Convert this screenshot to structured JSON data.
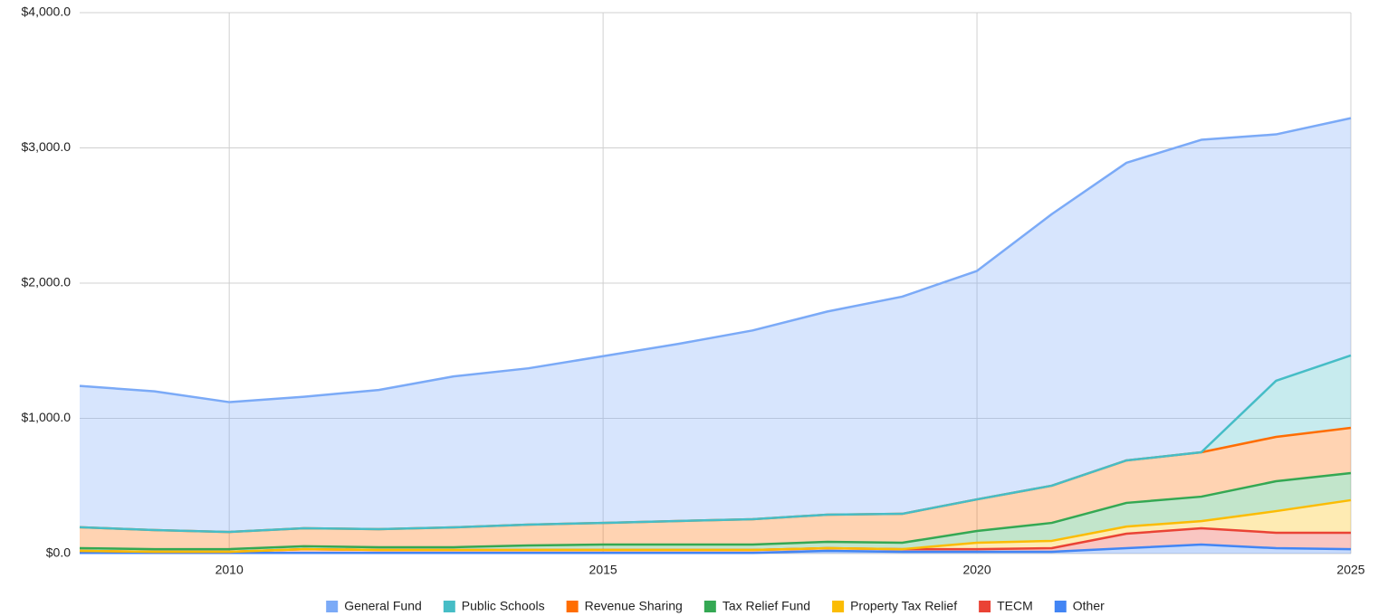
{
  "chart_data": {
    "type": "stacked_area",
    "x": [
      2008,
      2009,
      2010,
      2011,
      2012,
      2013,
      2014,
      2015,
      2016,
      2017,
      2018,
      2019,
      2020,
      2021,
      2022,
      2023,
      2024,
      2025
    ],
    "xlim": [
      2008,
      2025
    ],
    "xticks": [
      2010,
      2015,
      2020,
      2025
    ],
    "ylim": [
      0,
      4000
    ],
    "yticks": [
      {
        "value": 0,
        "label": "$0.0"
      },
      {
        "value": 1000,
        "label": "$1,000.0"
      },
      {
        "value": 2000,
        "label": "$2,000.0"
      },
      {
        "value": 3000,
        "label": "$3,000.0"
      },
      {
        "value": 4000,
        "label": "$4,000.0"
      }
    ],
    "grid": true,
    "legend": "bottom",
    "series": [
      {
        "name": "Other",
        "color": "#4285f4",
        "values": [
          5,
          5,
          5,
          5,
          5,
          5,
          5,
          5,
          5,
          5,
          20,
          13,
          13,
          13,
          40,
          67,
          40,
          33
        ]
      },
      {
        "name": "TECM",
        "color": "#ea4335",
        "values": [
          15,
          8,
          8,
          28,
          22,
          22,
          22,
          22,
          22,
          22,
          20,
          20,
          20,
          27,
          107,
          120,
          114,
          121
        ]
      },
      {
        "name": "Property Tax Relief",
        "color": "#fbbc04",
        "values": [
          0,
          0,
          0,
          0,
          0,
          0,
          0,
          0,
          0,
          0,
          0,
          0,
          47,
          54,
          53,
          53,
          160,
          241
        ]
      },
      {
        "name": "Tax Relief Fund",
        "color": "#34a853",
        "values": [
          20,
          20,
          20,
          21,
          20,
          20,
          33,
          40,
          40,
          40,
          47,
          47,
          87,
          133,
          175,
          181,
          221,
          200
        ]
      },
      {
        "name": "Revenue Sharing",
        "color": "#ff6d01",
        "values": [
          155,
          141,
          127,
          133,
          134,
          147,
          154,
          160,
          174,
          187,
          201,
          214,
          234,
          275,
          314,
          328,
          328,
          335
        ]
      },
      {
        "name": "Public Schools",
        "color": "#46bdc6",
        "values": [
          0,
          0,
          0,
          0,
          0,
          0,
          0,
          0,
          0,
          0,
          0,
          0,
          0,
          0,
          0,
          0,
          415,
          535
        ]
      },
      {
        "name": "General Fund",
        "color": "#7baaf7",
        "values": [
          1045,
          1026,
          960,
          973,
          1029,
          1116,
          1156,
          1233,
          1309,
          1396,
          1502,
          1606,
          1689,
          2008,
          2201,
          2311,
          1822,
          1755
        ]
      }
    ]
  }
}
